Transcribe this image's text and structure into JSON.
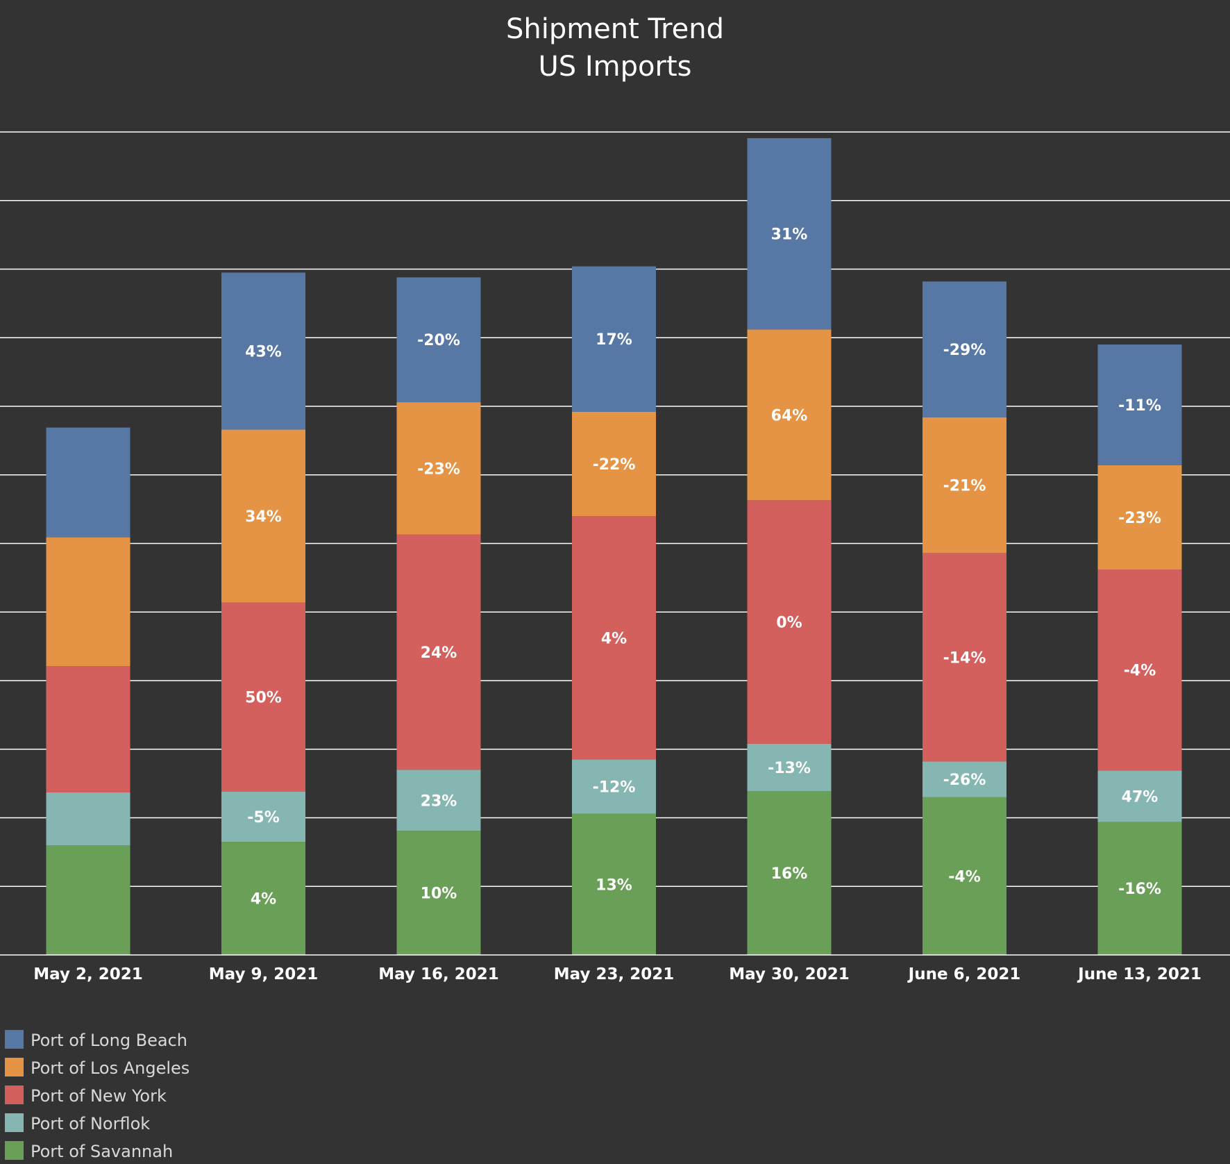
{
  "colors": {
    "background": "#333333",
    "gridline": "#ffffff",
    "text": "#ffffff",
    "legend_text": "#d9d9d9"
  },
  "chart_data": {
    "type": "bar",
    "stacked": true,
    "title": [
      "Shipment Trend",
      "US Imports"
    ],
    "xlabel": "",
    "ylabel": "",
    "grid": true,
    "legend_position": "bottom-left",
    "ylim": [
      0,
      12
    ],
    "categories": [
      "May 2, 2021",
      "May 9, 2021",
      "May 16, 2021",
      "May 23, 2021",
      "May 30, 2021",
      "June 6, 2021",
      "June 13, 2021"
    ],
    "series": [
      {
        "name": "Port of Savannah",
        "color": "#6a9f58",
        "values": [
          1.6,
          1.65,
          1.81,
          2.06,
          2.39,
          2.3,
          1.94
        ],
        "labels": [
          "",
          "4%",
          "10%",
          "13%",
          "16%",
          "-4%",
          "-16%"
        ]
      },
      {
        "name": "Port of Norflok",
        "color": "#85b6b2",
        "values": [
          0.77,
          0.73,
          0.89,
          0.79,
          0.69,
          0.52,
          0.75
        ],
        "labels": [
          "",
          "-5%",
          "23%",
          "-12%",
          "-13%",
          "-26%",
          "47%"
        ]
      },
      {
        "name": "Port of New York",
        "color": "#d4605e",
        "values": [
          1.84,
          2.76,
          3.43,
          3.55,
          3.55,
          3.04,
          2.93
        ],
        "labels": [
          "",
          "50%",
          "24%",
          "4%",
          "0%",
          "-14%",
          "-4%"
        ]
      },
      {
        "name": "Port of Los Angeles",
        "color": "#e49444",
        "values": [
          1.88,
          2.52,
          1.93,
          1.52,
          2.49,
          1.98,
          1.52
        ],
        "labels": [
          "",
          "34%",
          "-23%",
          "-22%",
          "64%",
          "-21%",
          "-23%"
        ]
      },
      {
        "name": "Port of Long Beach",
        "color": "#5778a4",
        "values": [
          1.6,
          2.29,
          1.82,
          2.12,
          2.79,
          1.98,
          1.76
        ],
        "labels": [
          "",
          "43%",
          "-20%",
          "17%",
          "31%",
          "-29%",
          "-11%"
        ]
      }
    ],
    "legend": [
      {
        "name": "Port of Long Beach",
        "color": "#5778a4"
      },
      {
        "name": "Port of Los Angeles",
        "color": "#e49444"
      },
      {
        "name": "Port of New York",
        "color": "#d4605e"
      },
      {
        "name": "Port of Norflok",
        "color": "#85b6b2"
      },
      {
        "name": "Port of Savannah",
        "color": "#6a9f58"
      }
    ]
  }
}
